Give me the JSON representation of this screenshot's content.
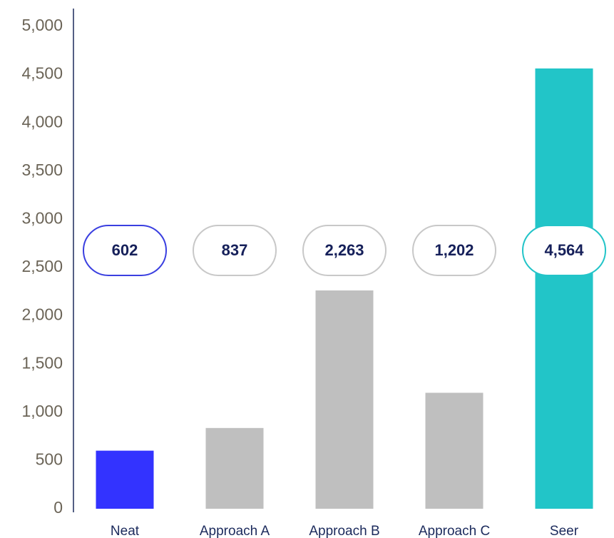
{
  "chart_data": {
    "type": "bar",
    "categories": [
      "Neat",
      "Approach A",
      "Approach B",
      "Approach C",
      "Seer"
    ],
    "values": [
      602,
      837,
      2263,
      1202,
      4564
    ],
    "value_labels": [
      "602",
      "837",
      "2,263",
      "1,202",
      "4,564"
    ],
    "colors": [
      "#3333ff",
      "#bfbfbf",
      "#bfbfbf",
      "#bfbfbf",
      "#22c5c8"
    ],
    "label_colors": [
      "#3a3fe0",
      "#c8c8c8",
      "#c8c8c8",
      "#c8c8c8",
      "#22c4c8"
    ],
    "ylim": [
      0,
      5000
    ],
    "yticks": [
      0,
      500,
      {
        "value": 1000,
        "label": "1,000"
      },
      {
        "value": 1500,
        "label": "1,500"
      },
      {
        "value": 2000,
        "label": "2,000"
      },
      {
        "value": 2500,
        "label": "2,500"
      },
      {
        "value": 3000,
        "label": "3,000"
      },
      {
        "value": 3500,
        "label": "3,500"
      },
      {
        "value": 4000,
        "label": "4,000"
      },
      {
        "value": 4500,
        "label": "4,500"
      },
      {
        "value": 5000,
        "label": "5,000"
      }
    ],
    "grid": false
  }
}
